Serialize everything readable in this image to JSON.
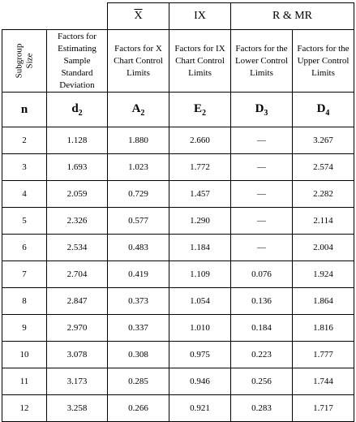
{
  "groups": {
    "xbar": "X",
    "ix": "IX",
    "rmr": "R & MR"
  },
  "descriptions": {
    "n": [
      "Subgroup",
      "Size"
    ],
    "d2": "Factors for Estimating Sample Standard Deviation",
    "a2": "Factors for X Chart Control Limits",
    "e2": "Factors for IX Chart Control Limits",
    "d3": "Factors for the Lower Control Limits",
    "d4": "Factors for the Upper Control Limits"
  },
  "symbols": {
    "n": "n",
    "d2": {
      "base": "d",
      "sub": "2"
    },
    "a2": {
      "base": "A",
      "sub": "2"
    },
    "e2": {
      "base": "E",
      "sub": "2"
    },
    "d3": {
      "base": "D",
      "sub": "3"
    },
    "d4": {
      "base": "D",
      "sub": "4"
    }
  },
  "rows": [
    {
      "n": "2",
      "d2": "1.128",
      "a2": "1.880",
      "e2": "2.660",
      "d3": "—",
      "d4": "3.267"
    },
    {
      "n": "3",
      "d2": "1.693",
      "a2": "1.023",
      "e2": "1.772",
      "d3": "—",
      "d4": "2.574"
    },
    {
      "n": "4",
      "d2": "2.059",
      "a2": "0.729",
      "e2": "1.457",
      "d3": "—",
      "d4": "2.282"
    },
    {
      "n": "5",
      "d2": "2.326",
      "a2": "0.577",
      "e2": "1.290",
      "d3": "—",
      "d4": "2.114"
    },
    {
      "n": "6",
      "d2": "2.534",
      "a2": "0.483",
      "e2": "1.184",
      "d3": "—",
      "d4": "2.004"
    },
    {
      "n": "7",
      "d2": "2.704",
      "a2": "0.419",
      "e2": "1.109",
      "d3": "0.076",
      "d4": "1.924"
    },
    {
      "n": "8",
      "d2": "2.847",
      "a2": "0.373",
      "e2": "1.054",
      "d3": "0.136",
      "d4": "1.864"
    },
    {
      "n": "9",
      "d2": "2.970",
      "a2": "0.337",
      "e2": "1.010",
      "d3": "0.184",
      "d4": "1.816"
    },
    {
      "n": "10",
      "d2": "3.078",
      "a2": "0.308",
      "e2": "0.975",
      "d3": "0.223",
      "d4": "1.777"
    },
    {
      "n": "11",
      "d2": "3.173",
      "a2": "0.285",
      "e2": "0.946",
      "d3": "0.256",
      "d4": "1.744"
    },
    {
      "n": "12",
      "d2": "3.258",
      "a2": "0.266",
      "e2": "0.921",
      "d3": "0.283",
      "d4": "1.717"
    }
  ]
}
